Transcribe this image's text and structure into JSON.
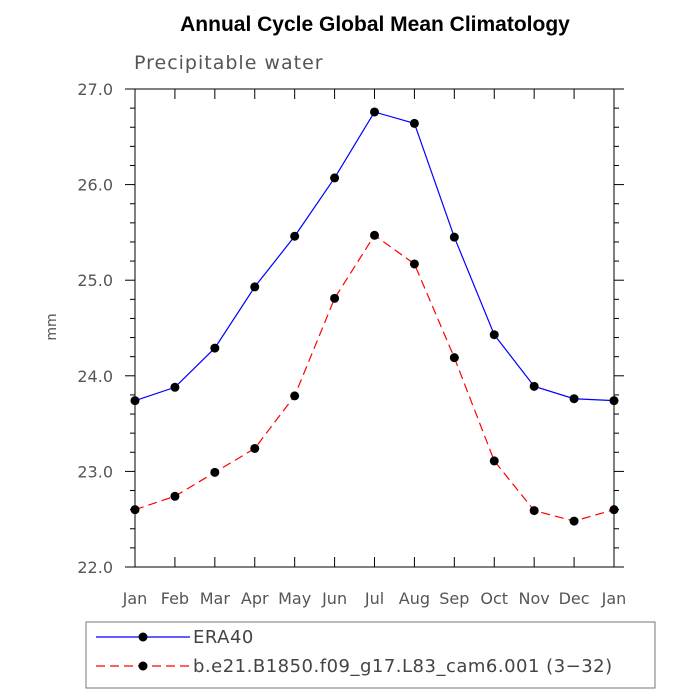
{
  "chart_data": {
    "type": "line",
    "title": "Annual Cycle Global Mean Climatology",
    "subtitle": "Precipitable water",
    "ylabel": "mm",
    "xlabel": "",
    "categories": [
      "Jan",
      "Feb",
      "Mar",
      "Apr",
      "May",
      "Jun",
      "Jul",
      "Aug",
      "Sep",
      "Oct",
      "Nov",
      "Dec",
      "Jan"
    ],
    "ylim": [
      22.0,
      27.0
    ],
    "yticks": [
      "22.0",
      "23.0",
      "24.0",
      "25.0",
      "26.0",
      "27.0"
    ],
    "grid": false,
    "legend_position": "bottom",
    "series": [
      {
        "name": "ERA40",
        "color": "#0000ff",
        "style": "solid",
        "values": [
          23.74,
          23.88,
          24.29,
          24.93,
          25.46,
          26.07,
          26.76,
          26.64,
          25.45,
          24.43,
          23.89,
          23.76,
          23.74
        ]
      },
      {
        "name": "b.e21.B1850.f09_g17.L83_cam6.001 (3−32)",
        "color": "#ff0000",
        "style": "dashed",
        "values": [
          22.6,
          22.74,
          22.99,
          23.24,
          23.79,
          24.81,
          25.47,
          25.17,
          24.19,
          23.11,
          22.59,
          22.48,
          22.6
        ]
      }
    ]
  }
}
